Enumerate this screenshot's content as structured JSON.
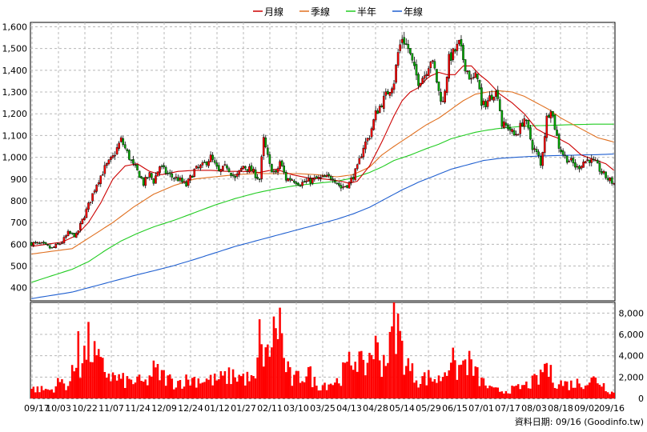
{
  "chart_data": {
    "type": "candlestick",
    "legend": [
      {
        "name": "月線",
        "color": "#cc0000"
      },
      {
        "name": "季線",
        "color": "#e07020"
      },
      {
        "name": "半年",
        "color": "#22cc22"
      },
      {
        "name": "年線",
        "color": "#1f5fd0"
      }
    ],
    "price_axis": {
      "ticks": [
        "400",
        "500",
        "600",
        "700",
        "800",
        "900",
        "1,000",
        "1,100",
        "1,200",
        "1,300",
        "1,400",
        "1,500",
        "1,600"
      ],
      "ylim": [
        340,
        1620
      ]
    },
    "volume_axis": {
      "ticks": [
        "0",
        "2,000",
        "4,000",
        "6,000",
        "8,000"
      ],
      "ylim": [
        0,
        9000
      ]
    },
    "x_labels": [
      "09/17",
      "10/03",
      "10/22",
      "11/07",
      "11/24",
      "12/09",
      "12/24",
      "01/12",
      "01/27",
      "02/11",
      "03/10",
      "03/25",
      "04/13",
      "04/28",
      "05/14",
      "05/29",
      "06/15",
      "07/01",
      "07/17",
      "08/03",
      "08/18",
      "09/02",
      "09/16"
    ],
    "footer": "資料日期: 09/16  (Goodinfo.tw)",
    "grid": true,
    "close_anchors": [
      [
        0,
        605
      ],
      [
        5,
        600
      ],
      [
        10,
        580
      ],
      [
        15,
        610
      ],
      [
        18,
        650
      ],
      [
        22,
        640
      ],
      [
        25,
        710
      ],
      [
        28,
        780
      ],
      [
        32,
        880
      ],
      [
        36,
        950
      ],
      [
        40,
        1000
      ],
      [
        44,
        1080
      ],
      [
        48,
        1000
      ],
      [
        50,
        960
      ],
      [
        53,
        920
      ],
      [
        55,
        880
      ],
      [
        58,
        920
      ],
      [
        60,
        890
      ],
      [
        63,
        960
      ],
      [
        66,
        930
      ],
      [
        69,
        910
      ],
      [
        72,
        900
      ],
      [
        76,
        870
      ],
      [
        80,
        940
      ],
      [
        84,
        960
      ],
      [
        88,
        1000
      ],
      [
        92,
        930
      ],
      [
        96,
        960
      ],
      [
        100,
        900
      ],
      [
        104,
        960
      ],
      [
        108,
        940
      ],
      [
        112,
        900
      ],
      [
        114,
        1080
      ],
      [
        117,
        960
      ],
      [
        120,
        920
      ],
      [
        122,
        980
      ],
      [
        125,
        900
      ],
      [
        128,
        900
      ],
      [
        132,
        880
      ],
      [
        136,
        890
      ],
      [
        140,
        900
      ],
      [
        144,
        905
      ],
      [
        148,
        910
      ],
      [
        152,
        860
      ],
      [
        156,
        880
      ],
      [
        160,
        950
      ],
      [
        163,
        1050
      ],
      [
        166,
        1100
      ],
      [
        169,
        1200
      ],
      [
        172,
        1250
      ],
      [
        175,
        1300
      ],
      [
        178,
        1350
      ],
      [
        180,
        1480
      ],
      [
        182,
        1550
      ],
      [
        185,
        1500
      ],
      [
        188,
        1400
      ],
      [
        190,
        1350
      ],
      [
        193,
        1380
      ],
      [
        196,
        1450
      ],
      [
        198,
        1400
      ],
      [
        200,
        1300
      ],
      [
        202,
        1250
      ],
      [
        205,
        1450
      ],
      [
        208,
        1490
      ],
      [
        210,
        1520
      ],
      [
        213,
        1420
      ],
      [
        216,
        1350
      ],
      [
        219,
        1380
      ],
      [
        221,
        1230
      ],
      [
        224,
        1260
      ],
      [
        227,
        1300
      ],
      [
        229,
        1290
      ],
      [
        231,
        1150
      ],
      [
        234,
        1140
      ],
      [
        237,
        1100
      ],
      [
        239,
        1120
      ],
      [
        242,
        1180
      ],
      [
        244,
        1120
      ],
      [
        246,
        1050
      ],
      [
        249,
        1000
      ],
      [
        250,
        960
      ],
      [
        253,
        1180
      ],
      [
        255,
        1230
      ],
      [
        257,
        1140
      ],
      [
        259,
        1050
      ],
      [
        262,
        1000
      ],
      [
        265,
        980
      ],
      [
        268,
        950
      ],
      [
        271,
        980
      ],
      [
        274,
        990
      ],
      [
        277,
        970
      ],
      [
        280,
        930
      ],
      [
        283,
        900
      ],
      [
        286,
        880
      ]
    ],
    "volume_anchors": [
      [
        0,
        900
      ],
      [
        10,
        800
      ],
      [
        14,
        1600
      ],
      [
        18,
        1200
      ],
      [
        22,
        3200
      ],
      [
        23,
        8500
      ],
      [
        24,
        3000
      ],
      [
        28,
        5000
      ],
      [
        34,
        3000
      ],
      [
        40,
        2000
      ],
      [
        46,
        1600
      ],
      [
        52,
        1600
      ],
      [
        56,
        1400
      ],
      [
        60,
        2600
      ],
      [
        70,
        1500
      ],
      [
        80,
        1800
      ],
      [
        90,
        1700
      ],
      [
        100,
        2200
      ],
      [
        110,
        1600
      ],
      [
        113,
        7500
      ],
      [
        114,
        3000
      ],
      [
        118,
        5500
      ],
      [
        122,
        7500
      ],
      [
        124,
        3500
      ],
      [
        128,
        1600
      ],
      [
        136,
        2500
      ],
      [
        140,
        1200
      ],
      [
        150,
        1600
      ],
      [
        160,
        4200
      ],
      [
        163,
        2500
      ],
      [
        168,
        5000
      ],
      [
        172,
        3500
      ],
      [
        176,
        4500
      ],
      [
        178,
        8000
      ],
      [
        180,
        6500
      ],
      [
        182,
        4500
      ],
      [
        186,
        2600
      ],
      [
        190,
        1800
      ],
      [
        196,
        2000
      ],
      [
        200,
        1700
      ],
      [
        204,
        3000
      ],
      [
        206,
        4200
      ],
      [
        208,
        2500
      ],
      [
        214,
        3500
      ],
      [
        220,
        1800
      ],
      [
        226,
        800
      ],
      [
        232,
        700
      ],
      [
        238,
        900
      ],
      [
        244,
        1300
      ],
      [
        250,
        1900
      ],
      [
        252,
        3300
      ],
      [
        255,
        2200
      ],
      [
        258,
        1500
      ],
      [
        264,
        1300
      ],
      [
        270,
        1500
      ],
      [
        278,
        1800
      ],
      [
        284,
        700
      ],
      [
        286,
        500
      ]
    ],
    "ma_month": [
      [
        0,
        590
      ],
      [
        15,
        610
      ],
      [
        22,
        640
      ],
      [
        28,
        700
      ],
      [
        34,
        790
      ],
      [
        40,
        900
      ],
      [
        46,
        960
      ],
      [
        52,
        970
      ],
      [
        58,
        935
      ],
      [
        64,
        920
      ],
      [
        72,
        935
      ],
      [
        80,
        940
      ],
      [
        88,
        940
      ],
      [
        96,
        935
      ],
      [
        104,
        935
      ],
      [
        112,
        930
      ],
      [
        120,
        945
      ],
      [
        128,
        920
      ],
      [
        136,
        905
      ],
      [
        144,
        900
      ],
      [
        152,
        890
      ],
      [
        156,
        880
      ],
      [
        160,
        890
      ],
      [
        166,
        960
      ],
      [
        172,
        1070
      ],
      [
        178,
        1190
      ],
      [
        182,
        1260
      ],
      [
        186,
        1300
      ],
      [
        190,
        1320
      ],
      [
        195,
        1370
      ],
      [
        200,
        1390
      ],
      [
        204,
        1380
      ],
      [
        208,
        1380
      ],
      [
        212,
        1420
      ],
      [
        216,
        1420
      ],
      [
        220,
        1380
      ],
      [
        224,
        1350
      ],
      [
        230,
        1290
      ],
      [
        236,
        1250
      ],
      [
        242,
        1200
      ],
      [
        248,
        1130
      ],
      [
        252,
        1110
      ],
      [
        258,
        1090
      ],
      [
        264,
        1060
      ],
      [
        270,
        1010
      ],
      [
        276,
        990
      ],
      [
        282,
        970
      ],
      [
        286,
        940
      ]
    ],
    "ma_season": [
      [
        0,
        555
      ],
      [
        20,
        580
      ],
      [
        30,
        640
      ],
      [
        40,
        700
      ],
      [
        50,
        770
      ],
      [
        60,
        830
      ],
      [
        70,
        870
      ],
      [
        80,
        900
      ],
      [
        90,
        910
      ],
      [
        100,
        920
      ],
      [
        110,
        925
      ],
      [
        120,
        925
      ],
      [
        130,
        925
      ],
      [
        140,
        920
      ],
      [
        150,
        910
      ],
      [
        158,
        920
      ],
      [
        166,
        955
      ],
      [
        172,
        1010
      ],
      [
        178,
        1050
      ],
      [
        186,
        1100
      ],
      [
        194,
        1150
      ],
      [
        200,
        1180
      ],
      [
        206,
        1220
      ],
      [
        212,
        1260
      ],
      [
        218,
        1290
      ],
      [
        224,
        1300
      ],
      [
        230,
        1305
      ],
      [
        236,
        1300
      ],
      [
        242,
        1280
      ],
      [
        248,
        1250
      ],
      [
        254,
        1220
      ],
      [
        260,
        1180
      ],
      [
        266,
        1150
      ],
      [
        272,
        1120
      ],
      [
        278,
        1090
      ],
      [
        286,
        1070
      ]
    ],
    "ma_half": [
      [
        0,
        425
      ],
      [
        10,
        455
      ],
      [
        20,
        485
      ],
      [
        28,
        520
      ],
      [
        36,
        570
      ],
      [
        44,
        615
      ],
      [
        52,
        650
      ],
      [
        60,
        680
      ],
      [
        70,
        710
      ],
      [
        80,
        745
      ],
      [
        90,
        780
      ],
      [
        100,
        810
      ],
      [
        110,
        835
      ],
      [
        120,
        855
      ],
      [
        130,
        870
      ],
      [
        140,
        880
      ],
      [
        150,
        890
      ],
      [
        158,
        905
      ],
      [
        166,
        930
      ],
      [
        172,
        955
      ],
      [
        178,
        985
      ],
      [
        186,
        1010
      ],
      [
        194,
        1040
      ],
      [
        200,
        1060
      ],
      [
        206,
        1085
      ],
      [
        212,
        1100
      ],
      [
        218,
        1115
      ],
      [
        224,
        1125
      ],
      [
        230,
        1133
      ],
      [
        236,
        1138
      ],
      [
        242,
        1143
      ],
      [
        248,
        1145
      ],
      [
        256,
        1147
      ],
      [
        266,
        1150
      ],
      [
        276,
        1152
      ],
      [
        286,
        1152
      ]
    ],
    "ma_year": [
      [
        0,
        350
      ],
      [
        10,
        365
      ],
      [
        20,
        380
      ],
      [
        30,
        405
      ],
      [
        40,
        430
      ],
      [
        50,
        455
      ],
      [
        60,
        478
      ],
      [
        70,
        502
      ],
      [
        80,
        530
      ],
      [
        90,
        560
      ],
      [
        100,
        590
      ],
      [
        110,
        615
      ],
      [
        120,
        640
      ],
      [
        130,
        665
      ],
      [
        140,
        690
      ],
      [
        150,
        715
      ],
      [
        158,
        740
      ],
      [
        166,
        770
      ],
      [
        174,
        810
      ],
      [
        182,
        850
      ],
      [
        190,
        885
      ],
      [
        198,
        915
      ],
      [
        206,
        945
      ],
      [
        214,
        965
      ],
      [
        222,
        985
      ],
      [
        230,
        995
      ],
      [
        238,
        1000
      ],
      [
        248,
        1005
      ],
      [
        258,
        1008
      ],
      [
        268,
        1010
      ],
      [
        278,
        1012
      ],
      [
        286,
        1015
      ]
    ]
  }
}
